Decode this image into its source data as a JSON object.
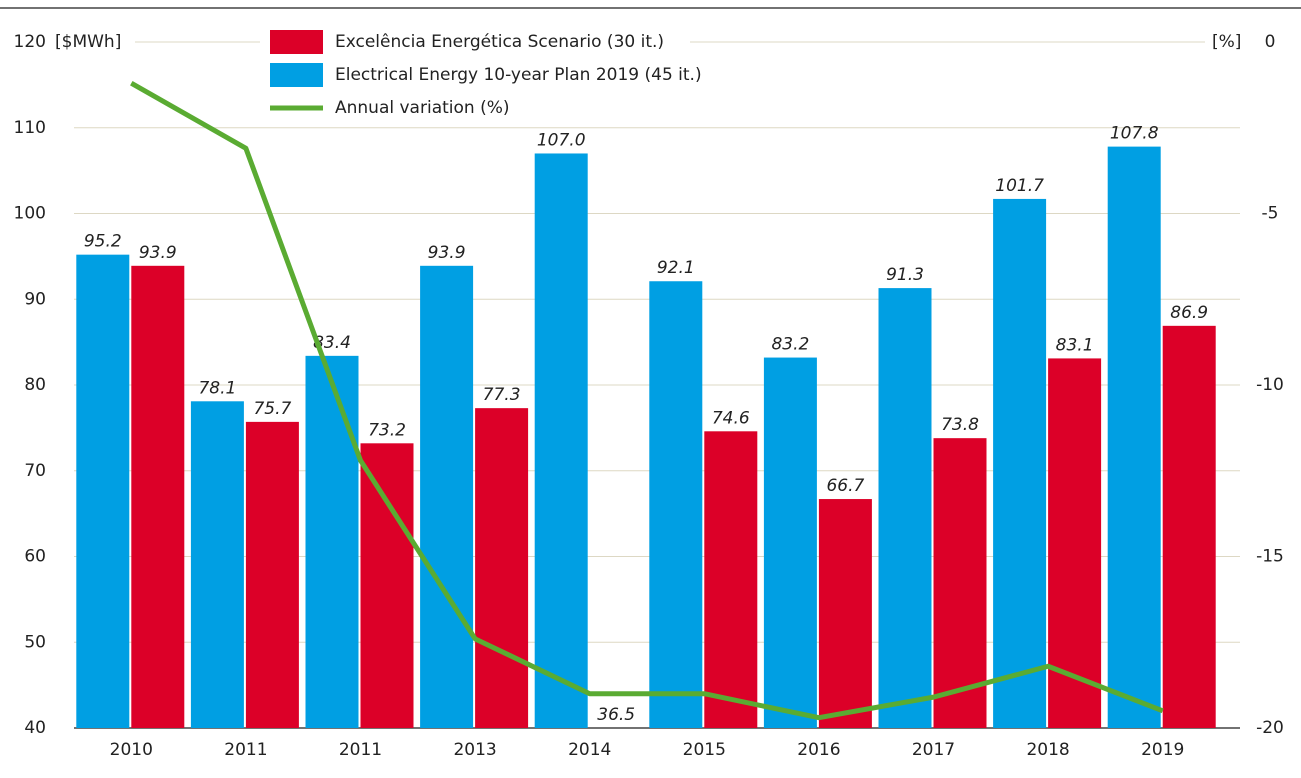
{
  "chart_data": {
    "type": "bar",
    "ylabel": "[$MWh]",
    "y2label": "[%]",
    "categories": [
      "2010",
      "2011",
      "2011",
      "2013",
      "2014",
      "2015",
      "2016",
      "2017",
      "2018",
      "2019"
    ],
    "series": [
      {
        "name": "Excelência Energética Scenario (30 it.)",
        "color": "#dc0028",
        "type": "bar",
        "values": [
          93.9,
          75.7,
          73.2,
          77.3,
          36.5,
          74.6,
          66.7,
          73.8,
          83.1,
          86.9
        ]
      },
      {
        "name": "Electrical Energy 10-year Plan 2019 (45 it.)",
        "color": "#009fe3",
        "type": "bar",
        "values": [
          95.2,
          78.1,
          83.4,
          93.9,
          107.0,
          92.1,
          83.2,
          91.3,
          101.7,
          107.8
        ],
        "value_labels": [
          "95.2",
          "78.1",
          "83.4",
          "93.9",
          "107.0",
          "92.1",
          "83.2",
          "91.3",
          "101.7",
          "107.8"
        ]
      },
      {
        "name": "Annual variation (%)",
        "color": "#5aab32",
        "type": "line",
        "axis": "y2",
        "values": [
          -1.2,
          -3.1,
          -12.2,
          -17.4,
          -19.0,
          -19.0,
          -19.7,
          -19.1,
          -18.2,
          -19.5
        ]
      }
    ],
    "ylim": [
      40,
      120
    ],
    "yticks": [
      40,
      50,
      60,
      70,
      80,
      90,
      100,
      110,
      120
    ],
    "y2lim": [
      -20,
      0
    ],
    "y2ticks": [
      -20,
      -15,
      -10,
      -5,
      0
    ],
    "grid": true
  }
}
